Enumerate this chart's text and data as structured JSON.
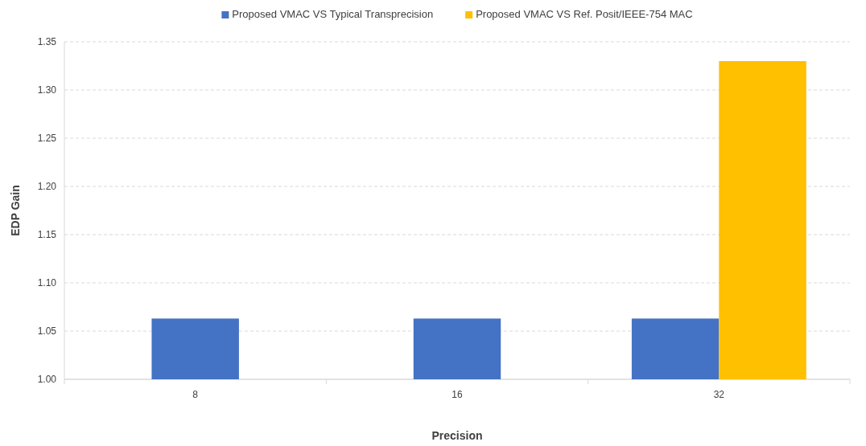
{
  "chart_data": {
    "type": "bar",
    "xlabel": "Precision",
    "ylabel": "EDP Gain",
    "categories": [
      "8",
      "16",
      "32"
    ],
    "series": [
      {
        "name": "Proposed VMAC VS Typical Transprecision",
        "color": "#4472c4",
        "values": [
          1.063,
          1.063,
          1.063
        ]
      },
      {
        "name": "Proposed VMAC VS  Ref. Posit/IEEE-754 MAC",
        "color": "#ffc000",
        "values": [
          null,
          null,
          1.33
        ]
      }
    ],
    "ylim": [
      1.0,
      1.35
    ],
    "yticks": [
      {
        "value": 1.0,
        "label": "1.00"
      },
      {
        "value": 1.05,
        "label": "1.05"
      },
      {
        "value": 1.1,
        "label": "1.10"
      },
      {
        "value": 1.15,
        "label": "1.15"
      },
      {
        "value": 1.2,
        "label": "1.20"
      },
      {
        "value": 1.25,
        "label": "1.25"
      },
      {
        "value": 1.3,
        "label": "1.30"
      },
      {
        "value": 1.35,
        "label": "1.35"
      }
    ],
    "grid": "y",
    "legend": "top"
  }
}
